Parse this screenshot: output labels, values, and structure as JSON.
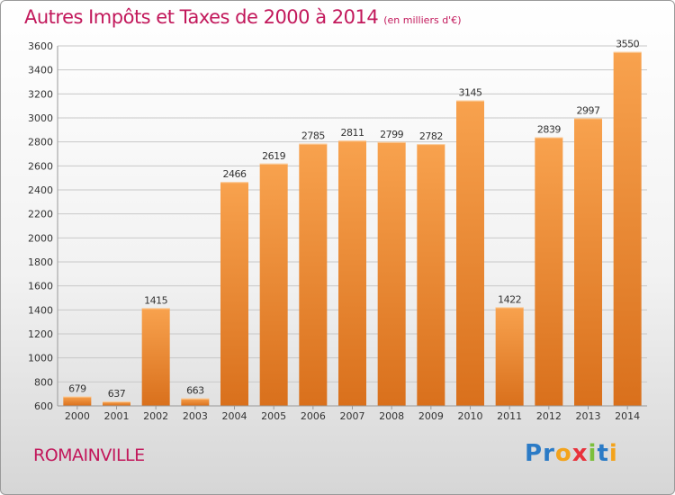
{
  "header": {
    "title": "Autres Impôts et Taxes de 2000 à 2014",
    "unit": "(en milliers d'€)"
  },
  "footer": {
    "commune": "ROMAINVILLE",
    "logo_letters": [
      "P",
      "r",
      "o",
      "x",
      "i",
      "t",
      "i"
    ],
    "logo_colors": [
      "#2b7bc6",
      "#2b7bc6",
      "#f3a31c",
      "#e8323c",
      "#7cbf3c",
      "#2b7bc6",
      "#f3a31c"
    ]
  },
  "colors": {
    "bar_light": "#f8a24e",
    "bar_dark": "#d9701c",
    "grid": "#c8c8c8",
    "axis_text": "#333333",
    "title": "#c2185b"
  },
  "chart_data": {
    "type": "bar",
    "title": "Autres Impôts et Taxes de 2000 à 2014",
    "subtitle": "(en milliers d'€)",
    "categories": [
      "2000",
      "2001",
      "2002",
      "2003",
      "2004",
      "2005",
      "2006",
      "2007",
      "2008",
      "2009",
      "2010",
      "2011",
      "2012",
      "2013",
      "2014"
    ],
    "values": [
      679,
      637,
      1415,
      663,
      2466,
      2619,
      2785,
      2811,
      2799,
      2782,
      3145,
      1422,
      2839,
      2997,
      3550
    ],
    "ylim": [
      600,
      3600
    ],
    "yticks": [
      600,
      800,
      1000,
      1200,
      1400,
      1600,
      1800,
      2000,
      2200,
      2400,
      2600,
      2800,
      3000,
      3200,
      3400,
      3600
    ],
    "grid": true,
    "legend": "none"
  }
}
